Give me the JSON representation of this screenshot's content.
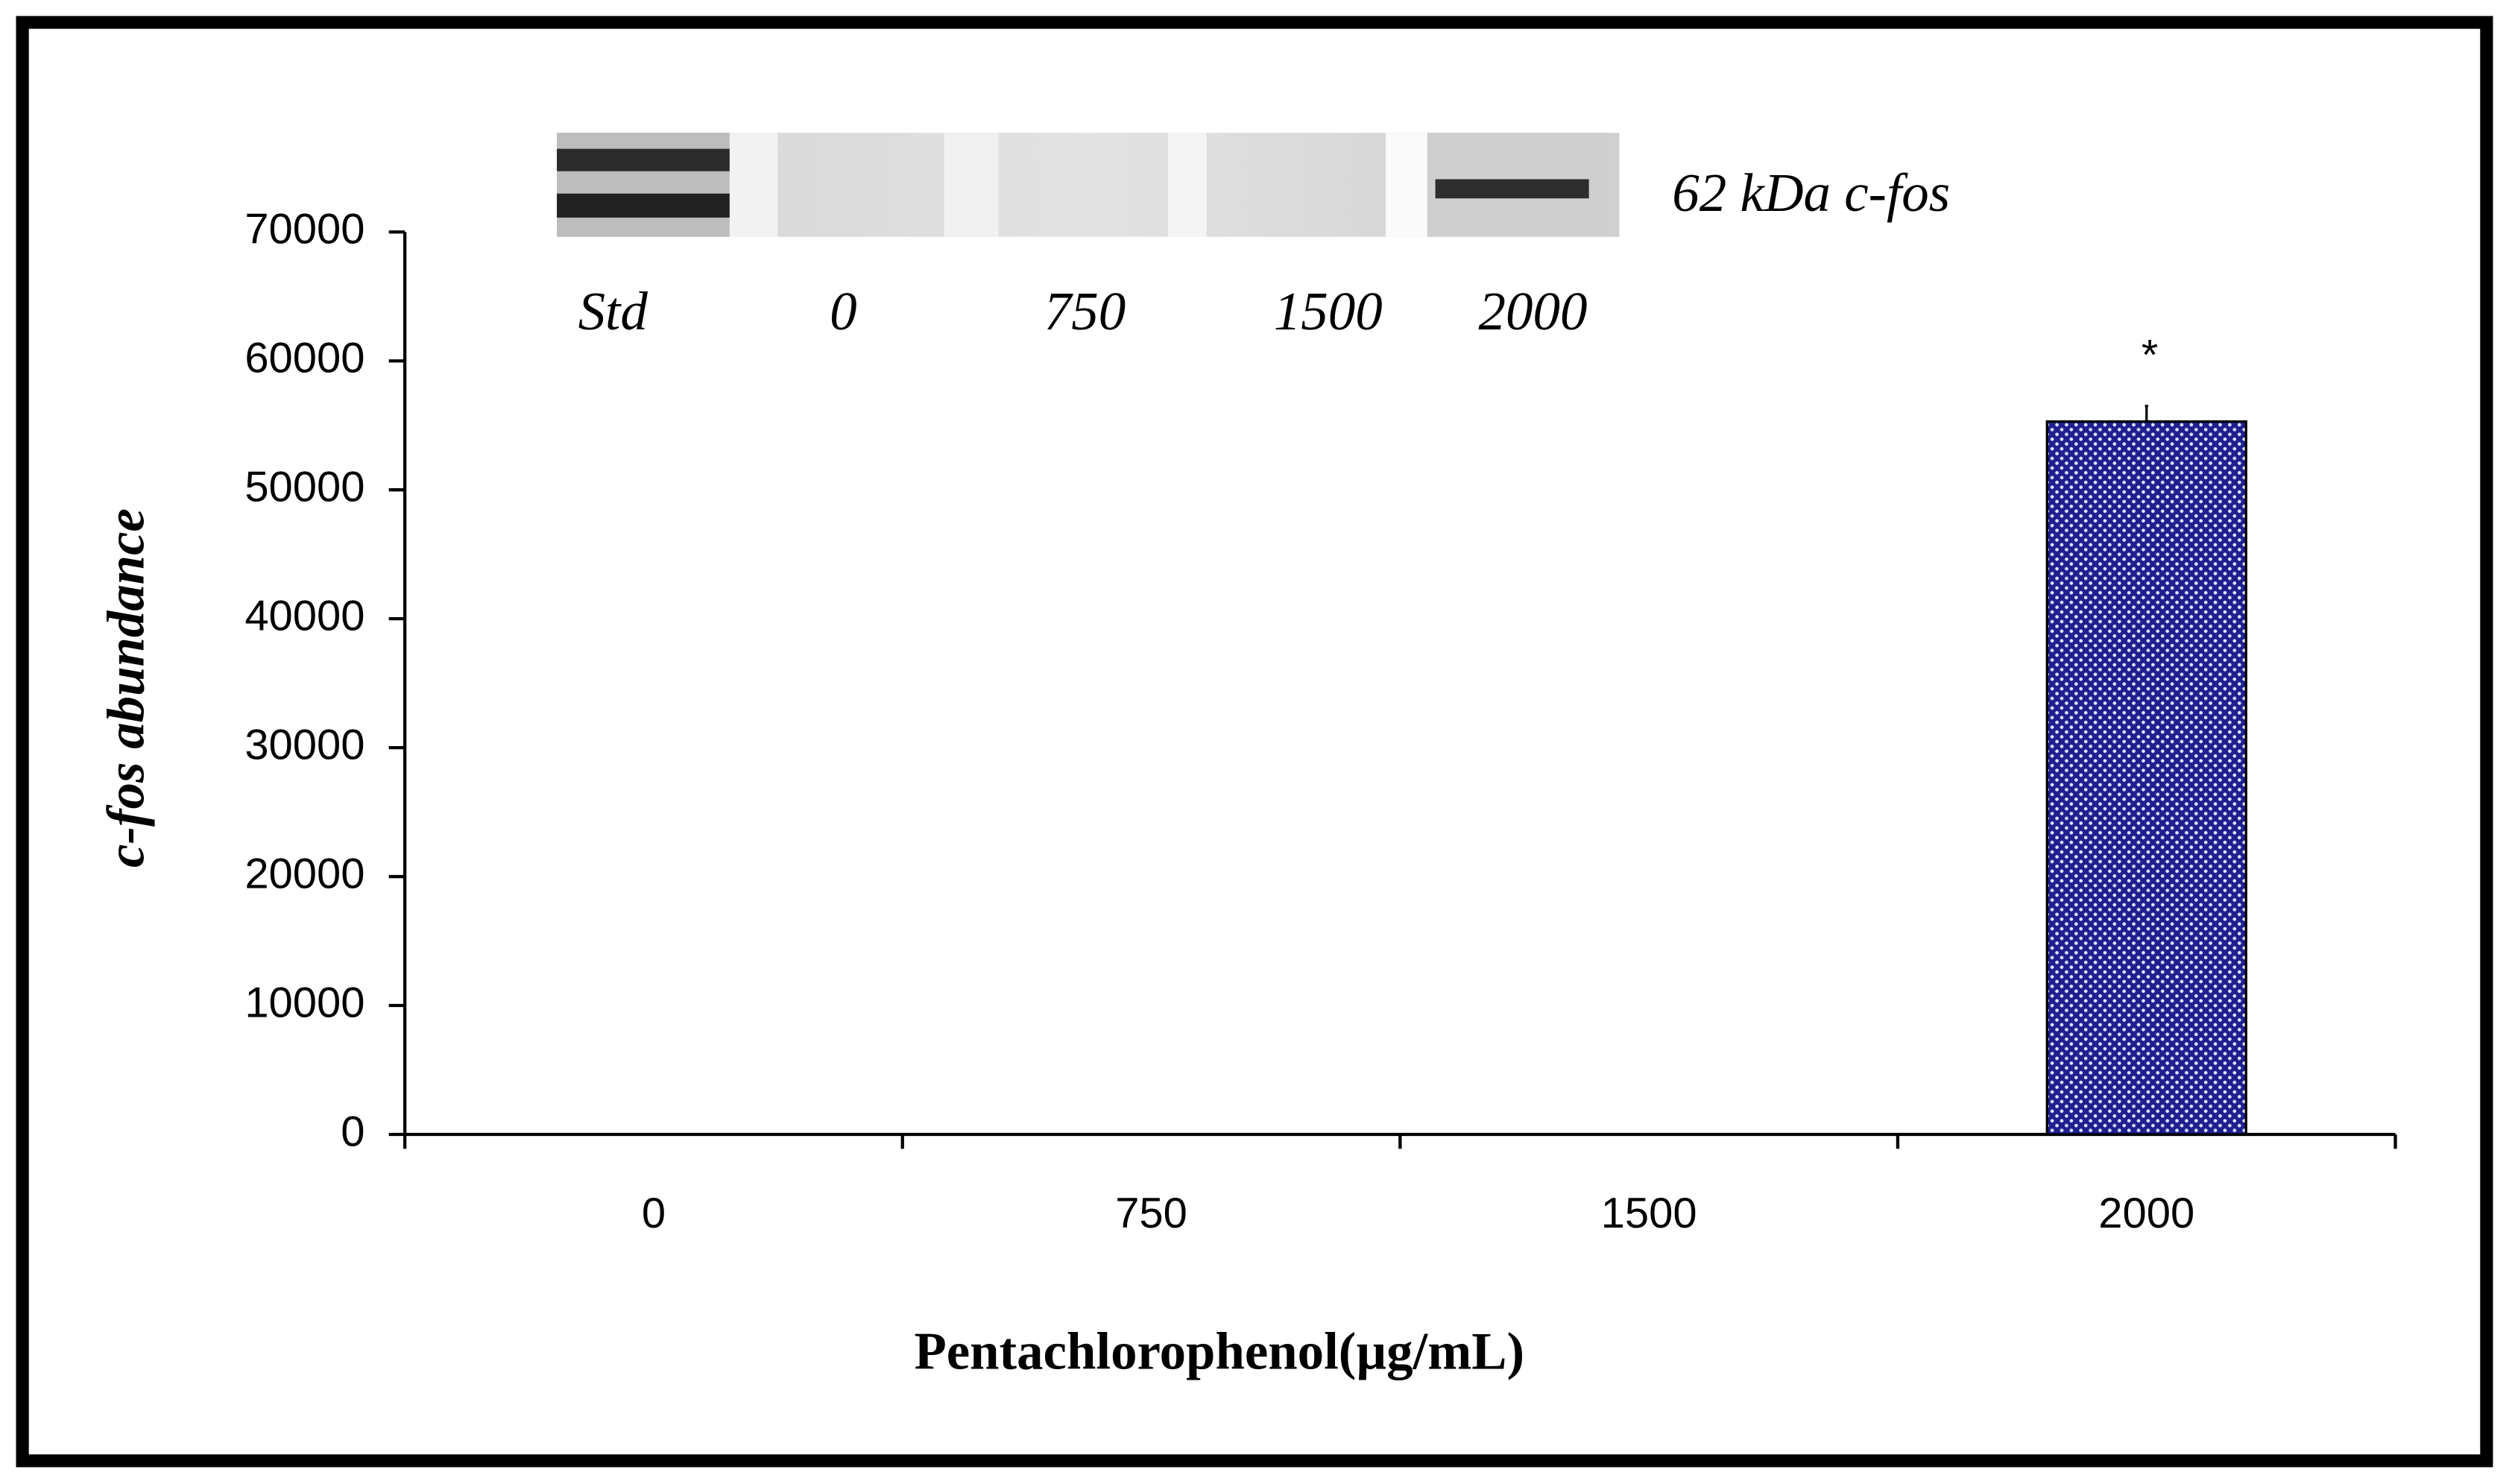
{
  "chart_data": {
    "type": "bar",
    "categories": [
      "0",
      "750",
      "1500",
      "2000"
    ],
    "values": [
      0,
      0,
      0,
      55300
    ],
    "errors": [
      null,
      null,
      null,
      1200
    ],
    "annotations": [
      null,
      null,
      null,
      "*"
    ],
    "color": "#1f1f8f",
    "ylim": [
      0,
      70000
    ],
    "yticks": [
      0,
      10000,
      20000,
      30000,
      40000,
      50000,
      60000,
      70000
    ],
    "y_label": "c-fos  abundance",
    "x_label": "Pentachlorophenol(µg/mL)",
    "blot_lanes": [
      "Std",
      "0",
      "750",
      "1500",
      "2000"
    ],
    "blot_label": "62 kDa c-fos"
  }
}
